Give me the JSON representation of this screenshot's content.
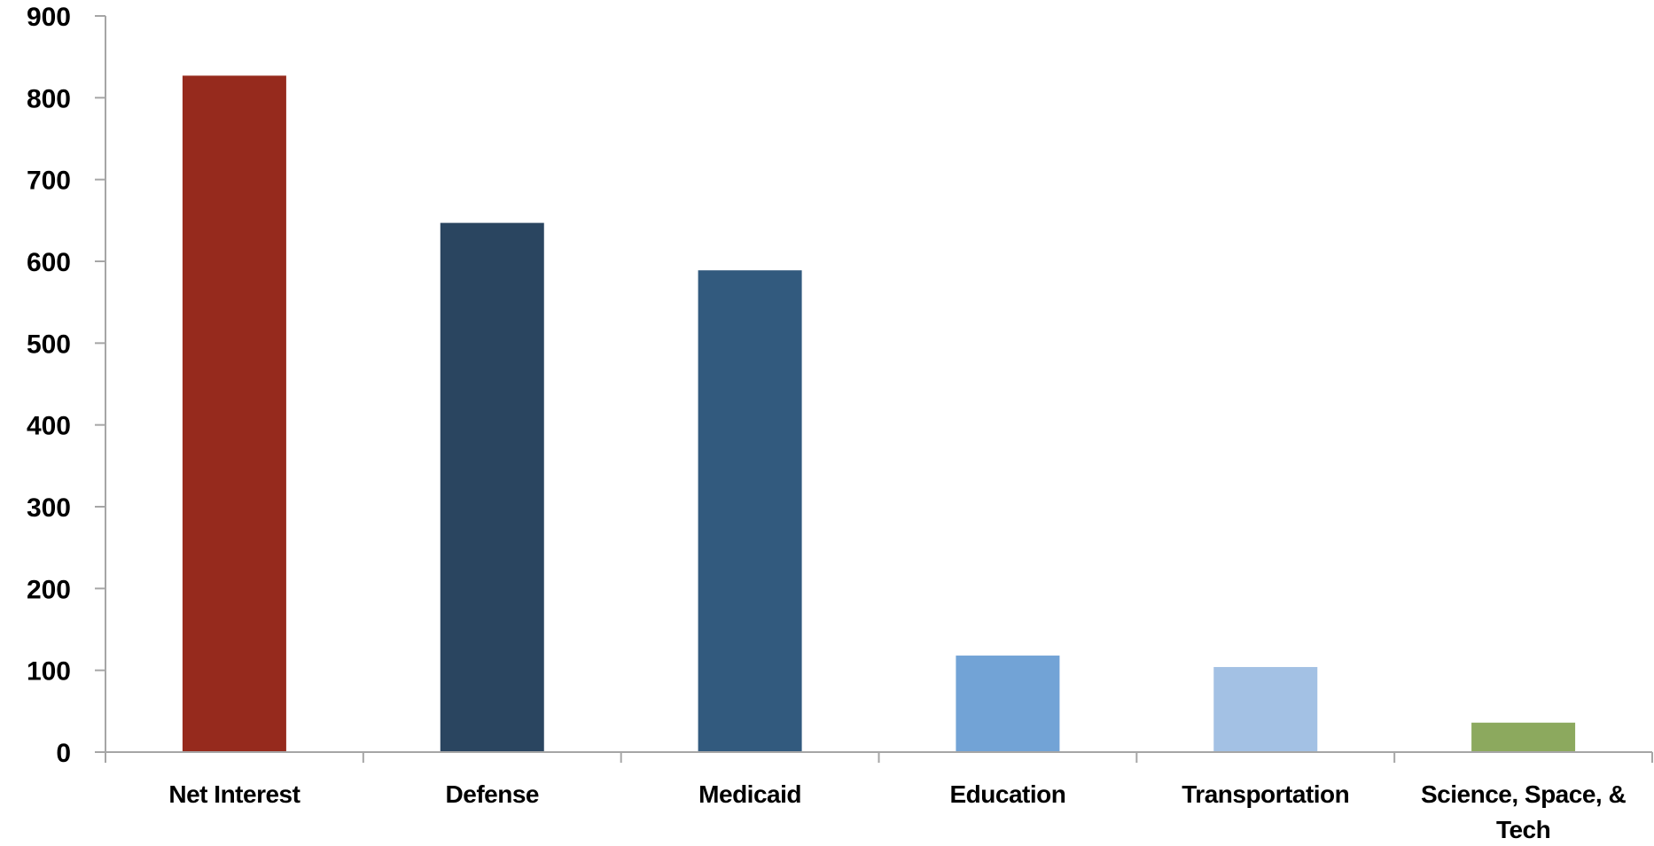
{
  "chart_data": {
    "type": "bar",
    "categories": [
      "Net Interest",
      "Defense",
      "Medicaid",
      "Education",
      "Transportation",
      "Science, Space, & Tech"
    ],
    "category_lines": [
      [
        "Net Interest"
      ],
      [
        "Defense"
      ],
      [
        "Medicaid"
      ],
      [
        "Education"
      ],
      [
        "Transportation"
      ],
      [
        "Science, Space, &",
        "Tech"
      ]
    ],
    "values": [
      827,
      647,
      589,
      118,
      104,
      36
    ],
    "colors": [
      "#962A1D",
      "#2A4560",
      "#325A7E",
      "#72A3D6",
      "#A3C1E4",
      "#8CA95E"
    ],
    "title": "",
    "xlabel": "",
    "ylabel": "",
    "ylim": [
      0,
      900
    ],
    "yticks": [
      0,
      100,
      200,
      300,
      400,
      500,
      600,
      700,
      800,
      900
    ],
    "grid": false,
    "legend": "none"
  }
}
